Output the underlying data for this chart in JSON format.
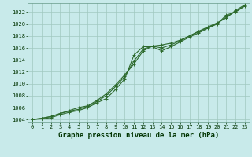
{
  "title": "Graphe pression niveau de la mer (hPa)",
  "background_color": "#c8eaea",
  "grid_color": "#a0c8c0",
  "line_color": "#2d6a2d",
  "x_values": [
    0,
    1,
    2,
    3,
    4,
    5,
    6,
    7,
    8,
    9,
    10,
    11,
    12,
    13,
    14,
    15,
    16,
    17,
    18,
    19,
    20,
    21,
    22,
    23
  ],
  "series": [
    [
      1004.0,
      1004.1,
      1004.3,
      1004.8,
      1005.2,
      1005.5,
      1006.0,
      1006.8,
      1007.5,
      1009.0,
      1010.8,
      1014.8,
      1016.2,
      1016.2,
      1015.5,
      1016.2,
      1017.0,
      1017.8,
      1018.5,
      1019.3,
      1020.0,
      1021.5,
      1022.0,
      1023.0
    ],
    [
      1004.0,
      1004.2,
      1004.5,
      1005.0,
      1005.5,
      1006.0,
      1006.3,
      1007.2,
      1008.3,
      1009.8,
      1011.5,
      1013.3,
      1015.5,
      1016.3,
      1016.5,
      1016.8,
      1017.3,
      1018.0,
      1018.8,
      1019.5,
      1020.2,
      1021.0,
      1022.3,
      1023.2
    ],
    [
      1004.0,
      1004.2,
      1004.5,
      1005.0,
      1005.4,
      1005.7,
      1006.2,
      1007.0,
      1008.0,
      1009.5,
      1011.2,
      1013.8,
      1015.8,
      1016.3,
      1016.0,
      1016.5,
      1017.2,
      1018.0,
      1018.7,
      1019.4,
      1020.1,
      1021.2,
      1022.1,
      1023.1
    ]
  ],
  "ylim_min": 1003.5,
  "ylim_max": 1023.5,
  "yticks": [
    1004,
    1006,
    1008,
    1010,
    1012,
    1014,
    1016,
    1018,
    1020,
    1022
  ],
  "xlim_min": -0.5,
  "xlim_max": 23.5,
  "xticks": [
    0,
    1,
    2,
    3,
    4,
    5,
    6,
    7,
    8,
    9,
    10,
    11,
    12,
    13,
    14,
    15,
    16,
    17,
    18,
    19,
    20,
    21,
    22,
    23
  ],
  "marker": "+",
  "marker_size": 3,
  "line_width": 0.8,
  "title_fontsize": 6.5,
  "tick_fontsize": 5.0,
  "title_color": "#003300",
  "tick_color": "#003300"
}
